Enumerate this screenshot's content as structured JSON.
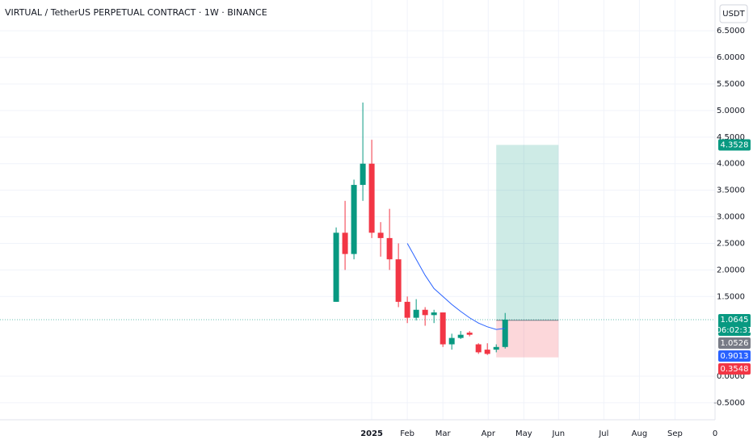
{
  "header": {
    "title": "VIRTUAL / TetherUS PERPETUAL CONTRACT · 1W · BINANCE",
    "currency": "USDT"
  },
  "chart_data": {
    "type": "candlestick",
    "up_color": "#089981",
    "down_color": "#f23645",
    "candles": [
      {
        "open": 1.4,
        "high": 2.8,
        "low": 1.4,
        "close": 2.7
      },
      {
        "open": 2.7,
        "high": 3.3,
        "low": 2.0,
        "close": 2.3
      },
      {
        "open": 2.3,
        "high": 3.7,
        "low": 2.2,
        "close": 3.6
      },
      {
        "open": 3.6,
        "high": 5.15,
        "low": 3.3,
        "close": 4.0
      },
      {
        "open": 4.0,
        "high": 4.45,
        "low": 2.6,
        "close": 2.7
      },
      {
        "open": 2.7,
        "high": 2.9,
        "low": 2.25,
        "close": 2.6
      },
      {
        "open": 2.6,
        "high": 3.15,
        "low": 2.0,
        "close": 2.2
      },
      {
        "open": 2.2,
        "high": 2.5,
        "low": 1.3,
        "close": 1.4
      },
      {
        "open": 1.4,
        "high": 1.5,
        "low": 1.0,
        "close": 1.1
      },
      {
        "open": 1.1,
        "high": 1.45,
        "low": 1.05,
        "close": 1.25
      },
      {
        "open": 1.25,
        "high": 1.3,
        "low": 0.95,
        "close": 1.15
      },
      {
        "open": 1.15,
        "high": 1.25,
        "low": 1.0,
        "close": 1.2
      },
      {
        "open": 1.2,
        "high": 1.2,
        "low": 0.55,
        "close": 0.6
      },
      {
        "open": 0.6,
        "high": 0.8,
        "low": 0.5,
        "close": 0.72
      },
      {
        "open": 0.72,
        "high": 0.85,
        "low": 0.7,
        "close": 0.78
      },
      {
        "open": 0.82,
        "high": 0.85,
        "low": 0.75,
        "close": 0.78
      },
      {
        "open": 0.6,
        "high": 0.62,
        "low": 0.42,
        "close": 0.45
      },
      {
        "open": 0.5,
        "high": 0.62,
        "low": 0.4,
        "close": 0.42
      },
      {
        "open": 0.5,
        "high": 0.6,
        "low": 0.45,
        "close": 0.55
      },
      {
        "open": 0.55,
        "high": 1.19,
        "low": 0.52,
        "close": 1.0645
      }
    ],
    "moving_average": {
      "color": "#2962ff",
      "x": [
        8,
        9,
        10,
        11,
        12,
        13,
        14,
        15,
        16,
        17,
        18,
        19
      ],
      "values": [
        2.5,
        2.2,
        1.9,
        1.65,
        1.5,
        1.35,
        1.22,
        1.1,
        1.0,
        0.93,
        0.88,
        0.9013
      ]
    },
    "position": {
      "x": [
        18,
        25
      ],
      "target": 4.3528,
      "entry": 1.0526,
      "stop": 0.3548
    },
    "last_price": 1.0645,
    "countdown": "06:02:31",
    "xlim": [
      -37.8,
      42.6
    ],
    "ylim": [
      -0.82,
      7.08
    ],
    "xticks": [
      {
        "value": 4,
        "label": "2025"
      },
      {
        "value": 8,
        "label": "Feb"
      },
      {
        "value": 12,
        "label": "Mar"
      },
      {
        "value": 17.1,
        "label": "Apr"
      },
      {
        "value": 21.1,
        "label": "May"
      },
      {
        "value": 25,
        "label": "Jun"
      },
      {
        "value": 30.1,
        "label": "Jul"
      },
      {
        "value": 34.1,
        "label": "Aug"
      },
      {
        "value": 38.1,
        "label": "Sep"
      },
      {
        "value": 42.6,
        "label": "0"
      }
    ],
    "yticks": [
      {
        "value": 6.5,
        "label": "6.5000"
      },
      {
        "value": 6.0,
        "label": "6.0000"
      },
      {
        "value": 5.5,
        "label": "5.5000"
      },
      {
        "value": 5.0,
        "label": "5.0000"
      },
      {
        "value": 4.5,
        "label": "4.5000"
      },
      {
        "value": 4.0,
        "label": "4.0000"
      },
      {
        "value": 3.5,
        "label": "3.5000"
      },
      {
        "value": 3.0,
        "label": "3.0000"
      },
      {
        "value": 2.5,
        "label": "2.5000"
      },
      {
        "value": 2.0,
        "label": "2.0000"
      },
      {
        "value": 1.5,
        "label": "1.5000"
      },
      {
        "value": 0,
        "label": "0.0000"
      },
      {
        "value": -0.5,
        "label": "-0.5000"
      }
    ],
    "grid": true
  }
}
